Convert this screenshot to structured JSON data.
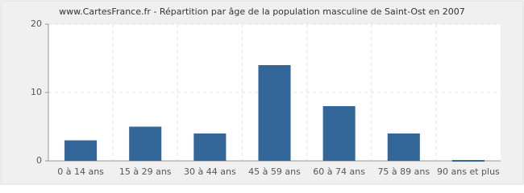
{
  "chart_data": {
    "type": "bar",
    "title": "www.CartesFrance.fr - Répartition par âge de la population masculine de Saint-Ost en 2007",
    "categories": [
      "0 à 14 ans",
      "15 à 29 ans",
      "30 à 44 ans",
      "45 à 59 ans",
      "60 à 74 ans",
      "75 à 89 ans",
      "90 ans et plus"
    ],
    "values": [
      3,
      5,
      4,
      14,
      8,
      4,
      0
    ],
    "color": "#336699",
    "ylim": [
      0,
      20
    ],
    "yticks": [
      0,
      10,
      20
    ],
    "grid": true
  }
}
